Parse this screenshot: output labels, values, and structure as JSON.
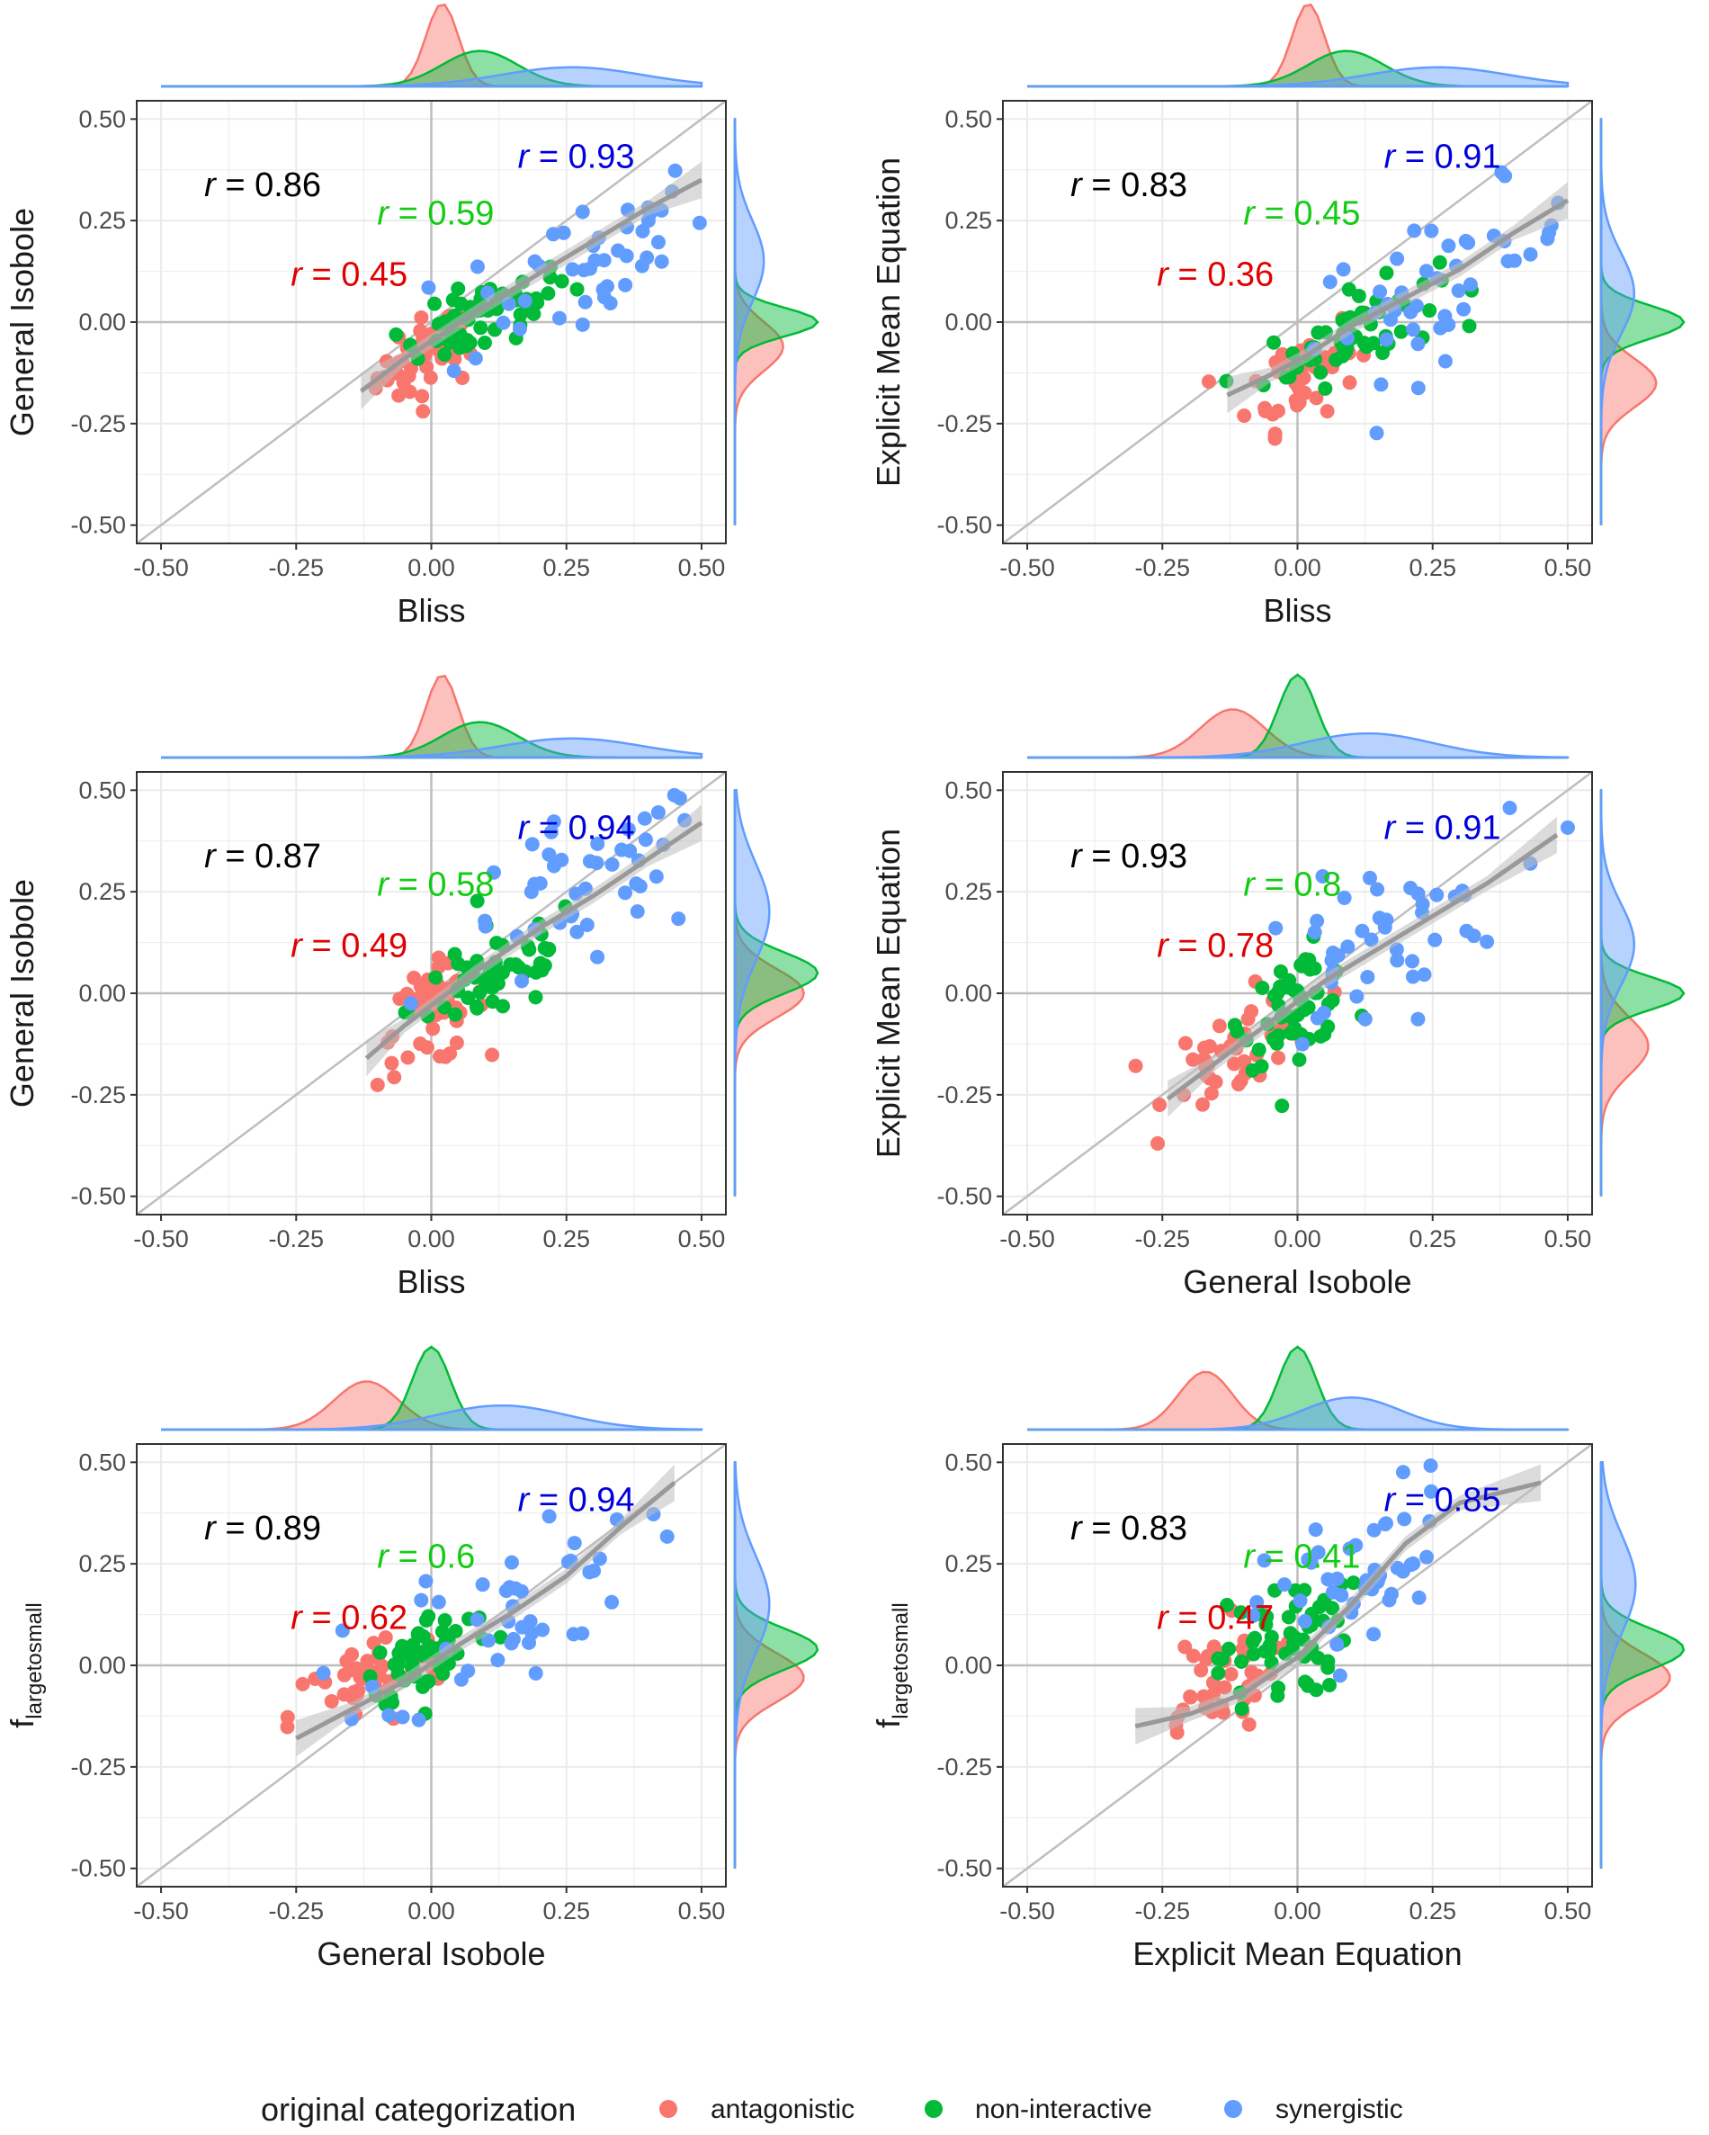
{
  "legend": {
    "title": "original categorization",
    "items": [
      {
        "label": "antagonistic",
        "color": "#F8766D"
      },
      {
        "label": "non-interactive",
        "color": "#00BA38"
      },
      {
        "label": "synergistic",
        "color": "#619CFF"
      }
    ]
  },
  "colors": {
    "antagonistic": "#F8766D",
    "non_interactive": "#00BA38",
    "synergistic": "#619CFF",
    "overall_label": "#000000",
    "antagonistic_label": "#E00000",
    "non_interactive_label": "#11CC11",
    "synergistic_label": "#0000DD",
    "identity_line": "#BEBEBE",
    "smooth_line": "#999999",
    "smooth_band": "#BEBEBE"
  },
  "chart_data": [
    {
      "type": "scatter",
      "xlabel": "Bliss",
      "ylabel": "General Isobole",
      "xlim": [
        -0.5,
        0.5
      ],
      "ylim": [
        -0.5,
        0.5
      ],
      "xticks": [
        "-0.50",
        "-0.25",
        "0.00",
        "0.25",
        "0.50"
      ],
      "yticks": [
        "-0.50",
        "-0.25",
        "0.00",
        "0.25",
        "0.50"
      ],
      "grid": true,
      "correlations": [
        {
          "label": "r",
          "value": "= 0.86",
          "group": "overall"
        },
        {
          "label": "r",
          "value": "= 0.93",
          "group": "synergistic"
        },
        {
          "label": "r",
          "value": "= 0.59",
          "group": "non-interactive"
        },
        {
          "label": "r",
          "value": "= 0.45",
          "group": "antagonistic"
        }
      ],
      "smooth": [
        [
          -0.13,
          -0.17
        ],
        [
          -0.05,
          -0.09
        ],
        [
          0.02,
          -0.03
        ],
        [
          0.1,
          0.04
        ],
        [
          0.2,
          0.12
        ],
        [
          0.3,
          0.2
        ],
        [
          0.4,
          0.28
        ],
        [
          0.5,
          0.35
        ]
      ],
      "groups": [
        {
          "name": "antagonistic",
          "x_center": 0.0,
          "y_center": -0.08,
          "x_spread": 0.05,
          "y_spread": 0.05,
          "n": 45,
          "marginal_x_peak": 0.02,
          "marginal_x_width": 0.03,
          "marginal_y_peak": -0.06,
          "marginal_y_width": 0.06
        },
        {
          "name": "non-interactive",
          "x_center": 0.1,
          "y_center": 0.01,
          "x_spread": 0.08,
          "y_spread": 0.04,
          "n": 55,
          "marginal_x_peak": 0.09,
          "marginal_x_width": 0.07,
          "marginal_y_peak": 0.0,
          "marginal_y_width": 0.035
        },
        {
          "name": "synergistic",
          "x_center": 0.27,
          "y_center": 0.14,
          "x_spread": 0.12,
          "y_spread": 0.09,
          "n": 45,
          "marginal_x_peak": 0.26,
          "marginal_x_width": 0.13,
          "marginal_y_peak": 0.15,
          "marginal_y_width": 0.1
        }
      ]
    },
    {
      "type": "scatter",
      "xlabel": "Bliss",
      "ylabel": "Explicit Mean Equation",
      "xlim": [
        -0.5,
        0.5
      ],
      "ylim": [
        -0.5,
        0.5
      ],
      "xticks": [
        "-0.50",
        "-0.25",
        "0.00",
        "0.25",
        "0.50"
      ],
      "yticks": [
        "-0.50",
        "-0.25",
        "0.00",
        "0.25",
        "0.50"
      ],
      "grid": true,
      "correlations": [
        {
          "label": "r",
          "value": "= 0.83",
          "group": "overall"
        },
        {
          "label": "r",
          "value": "= 0.91",
          "group": "synergistic"
        },
        {
          "label": "r",
          "value": "= 0.45",
          "group": "non-interactive"
        },
        {
          "label": "r",
          "value": "= 0.36",
          "group": "antagonistic"
        }
      ],
      "smooth": [
        [
          -0.13,
          -0.18
        ],
        [
          -0.05,
          -0.13
        ],
        [
          0.02,
          -0.08
        ],
        [
          0.1,
          -0.01
        ],
        [
          0.2,
          0.06
        ],
        [
          0.3,
          0.13
        ],
        [
          0.4,
          0.22
        ],
        [
          0.5,
          0.3
        ]
      ],
      "groups": [
        {
          "name": "antagonistic",
          "x_center": 0.01,
          "y_center": -0.12,
          "x_spread": 0.05,
          "y_spread": 0.06,
          "n": 45,
          "marginal_x_peak": 0.02,
          "marginal_x_width": 0.03,
          "marginal_y_peak": -0.15,
          "marginal_y_width": 0.06
        },
        {
          "name": "non-interactive",
          "x_center": 0.1,
          "y_center": -0.03,
          "x_spread": 0.08,
          "y_spread": 0.05,
          "n": 55,
          "marginal_x_peak": 0.09,
          "marginal_x_width": 0.07,
          "marginal_y_peak": 0.0,
          "marginal_y_width": 0.04
        },
        {
          "name": "synergistic",
          "x_center": 0.27,
          "y_center": 0.1,
          "x_spread": 0.12,
          "y_spread": 0.09,
          "n": 45,
          "marginal_x_peak": 0.26,
          "marginal_x_width": 0.13,
          "marginal_y_peak": 0.07,
          "marginal_y_width": 0.1
        }
      ]
    },
    {
      "type": "scatter",
      "xlabel": "Bliss",
      "ylabel": "General Isobole",
      "xlim": [
        -0.5,
        0.5
      ],
      "ylim": [
        -0.5,
        0.5
      ],
      "xticks": [
        "-0.50",
        "-0.25",
        "0.00",
        "0.25",
        "0.50"
      ],
      "yticks": [
        "-0.50",
        "-0.25",
        "0.00",
        "0.25",
        "0.50"
      ],
      "grid": true,
      "correlations": [
        {
          "label": "r",
          "value": "= 0.87",
          "group": "overall"
        },
        {
          "label": "r",
          "value": "= 0.94",
          "group": "synergistic"
        },
        {
          "label": "r",
          "value": "= 0.58",
          "group": "non-interactive"
        },
        {
          "label": "r",
          "value": "= 0.49",
          "group": "antagonistic"
        }
      ],
      "smooth": [
        [
          -0.12,
          -0.16
        ],
        [
          -0.05,
          -0.08
        ],
        [
          0.02,
          -0.01
        ],
        [
          0.1,
          0.07
        ],
        [
          0.2,
          0.16
        ],
        [
          0.3,
          0.24
        ],
        [
          0.4,
          0.33
        ],
        [
          0.5,
          0.42
        ]
      ],
      "groups": [
        {
          "name": "antagonistic",
          "x_center": 0.0,
          "y_center": -0.06,
          "x_spread": 0.05,
          "y_spread": 0.06,
          "n": 45,
          "marginal_x_peak": 0.02,
          "marginal_x_width": 0.03,
          "marginal_y_peak": 0.0,
          "marginal_y_width": 0.06
        },
        {
          "name": "non-interactive",
          "x_center": 0.12,
          "y_center": 0.05,
          "x_spread": 0.08,
          "y_spread": 0.06,
          "n": 55,
          "marginal_x_peak": 0.09,
          "marginal_x_width": 0.07,
          "marginal_y_peak": 0.05,
          "marginal_y_width": 0.05
        },
        {
          "name": "synergistic",
          "x_center": 0.28,
          "y_center": 0.24,
          "x_spread": 0.12,
          "y_spread": 0.1,
          "n": 45,
          "marginal_x_peak": 0.26,
          "marginal_x_width": 0.13,
          "marginal_y_peak": 0.2,
          "marginal_y_width": 0.12
        }
      ]
    },
    {
      "type": "scatter",
      "xlabel": "General Isobole",
      "ylabel": "Explicit Mean Equation",
      "xlim": [
        -0.5,
        0.5
      ],
      "ylim": [
        -0.5,
        0.5
      ],
      "xticks": [
        "-0.50",
        "-0.25",
        "0.00",
        "0.25",
        "0.50"
      ],
      "yticks": [
        "-0.50",
        "-0.25",
        "0.00",
        "0.25",
        "0.50"
      ],
      "grid": true,
      "correlations": [
        {
          "label": "r",
          "value": "= 0.93",
          "group": "overall"
        },
        {
          "label": "r",
          "value": "= 0.91",
          "group": "synergistic"
        },
        {
          "label": "r",
          "value": "= 0.8",
          "group": "non-interactive"
        },
        {
          "label": "r",
          "value": "= 0.78",
          "group": "antagonistic"
        }
      ],
      "smooth": [
        [
          -0.24,
          -0.26
        ],
        [
          -0.15,
          -0.17
        ],
        [
          -0.05,
          -0.07
        ],
        [
          0.05,
          0.03
        ],
        [
          0.15,
          0.11
        ],
        [
          0.25,
          0.19
        ],
        [
          0.35,
          0.27
        ],
        [
          0.48,
          0.39
        ]
      ],
      "groups": [
        {
          "name": "antagonistic",
          "x_center": -0.1,
          "y_center": -0.13,
          "x_spread": 0.07,
          "y_spread": 0.06,
          "n": 45,
          "marginal_x_peak": -0.12,
          "marginal_x_width": 0.06,
          "marginal_y_peak": -0.13,
          "marginal_y_width": 0.07
        },
        {
          "name": "non-interactive",
          "x_center": 0.0,
          "y_center": -0.02,
          "x_spread": 0.05,
          "y_spread": 0.06,
          "n": 55,
          "marginal_x_peak": 0.0,
          "marginal_x_width": 0.035,
          "marginal_y_peak": 0.0,
          "marginal_y_width": 0.04
        },
        {
          "name": "synergistic",
          "x_center": 0.15,
          "y_center": 0.12,
          "x_spread": 0.12,
          "y_spread": 0.1,
          "n": 45,
          "marginal_x_peak": 0.13,
          "marginal_x_width": 0.12,
          "marginal_y_peak": 0.12,
          "marginal_y_width": 0.1
        }
      ]
    },
    {
      "type": "scatter",
      "xlabel": "General Isobole",
      "ylabel": "f",
      "ylabel_subscript": "largetosmall",
      "xlim": [
        -0.5,
        0.5
      ],
      "ylim": [
        -0.5,
        0.5
      ],
      "xticks": [
        "-0.50",
        "-0.25",
        "0.00",
        "0.25",
        "0.50"
      ],
      "yticks": [
        "-0.50",
        "-0.25",
        "0.00",
        "0.25",
        "0.50"
      ],
      "grid": true,
      "correlations": [
        {
          "label": "r",
          "value": "= 0.89",
          "group": "overall"
        },
        {
          "label": "r",
          "value": "= 0.94",
          "group": "synergistic"
        },
        {
          "label": "r",
          "value": "= 0.6",
          "group": "non-interactive"
        },
        {
          "label": "r",
          "value": "= 0.62",
          "group": "antagonistic"
        }
      ],
      "smooth": [
        [
          -0.25,
          -0.18
        ],
        [
          -0.15,
          -0.11
        ],
        [
          -0.05,
          -0.04
        ],
        [
          0.05,
          0.05
        ],
        [
          0.15,
          0.13
        ],
        [
          0.25,
          0.22
        ],
        [
          0.35,
          0.34
        ],
        [
          0.45,
          0.45
        ]
      ],
      "groups": [
        {
          "name": "antagonistic",
          "x_center": -0.12,
          "y_center": -0.05,
          "x_spread": 0.07,
          "y_spread": 0.06,
          "n": 45,
          "marginal_x_peak": -0.12,
          "marginal_x_width": 0.06,
          "marginal_y_peak": -0.03,
          "marginal_y_width": 0.06
        },
        {
          "name": "non-interactive",
          "x_center": 0.0,
          "y_center": 0.03,
          "x_spread": 0.06,
          "y_spread": 0.05,
          "n": 55,
          "marginal_x_peak": 0.0,
          "marginal_x_width": 0.035,
          "marginal_y_peak": 0.04,
          "marginal_y_width": 0.05
        },
        {
          "name": "synergistic",
          "x_center": 0.15,
          "y_center": 0.15,
          "x_spread": 0.12,
          "y_spread": 0.1,
          "n": 45,
          "marginal_x_peak": 0.13,
          "marginal_x_width": 0.12,
          "marginal_y_peak": 0.15,
          "marginal_y_width": 0.12
        }
      ]
    },
    {
      "type": "scatter",
      "xlabel": "Explicit Mean Equation",
      "ylabel": "f",
      "ylabel_subscript": "largetosmall",
      "xlim": [
        -0.5,
        0.5
      ],
      "ylim": [
        -0.5,
        0.5
      ],
      "xticks": [
        "-0.50",
        "-0.25",
        "0.00",
        "0.25",
        "0.50"
      ],
      "yticks": [
        "-0.50",
        "-0.25",
        "0.00",
        "0.25",
        "0.50"
      ],
      "grid": true,
      "correlations": [
        {
          "label": "r",
          "value": "= 0.83",
          "group": "overall"
        },
        {
          "label": "r",
          "value": "= 0.85",
          "group": "synergistic"
        },
        {
          "label": "r",
          "value": "= 0.41",
          "group": "non-interactive"
        },
        {
          "label": "r",
          "value": "= 0.47",
          "group": "antagonistic"
        }
      ],
      "smooth": [
        [
          -0.3,
          -0.15
        ],
        [
          -0.2,
          -0.12
        ],
        [
          -0.1,
          -0.07
        ],
        [
          0.0,
          0.02
        ],
        [
          0.1,
          0.15
        ],
        [
          0.2,
          0.3
        ],
        [
          0.3,
          0.4
        ],
        [
          0.45,
          0.45
        ]
      ],
      "groups": [
        {
          "name": "antagonistic",
          "x_center": -0.16,
          "y_center": -0.05,
          "x_spread": 0.06,
          "y_spread": 0.07,
          "n": 45,
          "marginal_x_peak": -0.17,
          "marginal_x_width": 0.05,
          "marginal_y_peak": -0.03,
          "marginal_y_width": 0.06
        },
        {
          "name": "non-interactive",
          "x_center": -0.03,
          "y_center": 0.05,
          "x_spread": 0.06,
          "y_spread": 0.08,
          "n": 55,
          "marginal_x_peak": 0.0,
          "marginal_x_width": 0.035,
          "marginal_y_peak": 0.04,
          "marginal_y_width": 0.05
        },
        {
          "name": "synergistic",
          "x_center": 0.12,
          "y_center": 0.22,
          "x_spread": 0.09,
          "y_spread": 0.1,
          "n": 45,
          "marginal_x_peak": 0.1,
          "marginal_x_width": 0.09,
          "marginal_y_peak": 0.2,
          "marginal_y_width": 0.12
        }
      ]
    }
  ]
}
